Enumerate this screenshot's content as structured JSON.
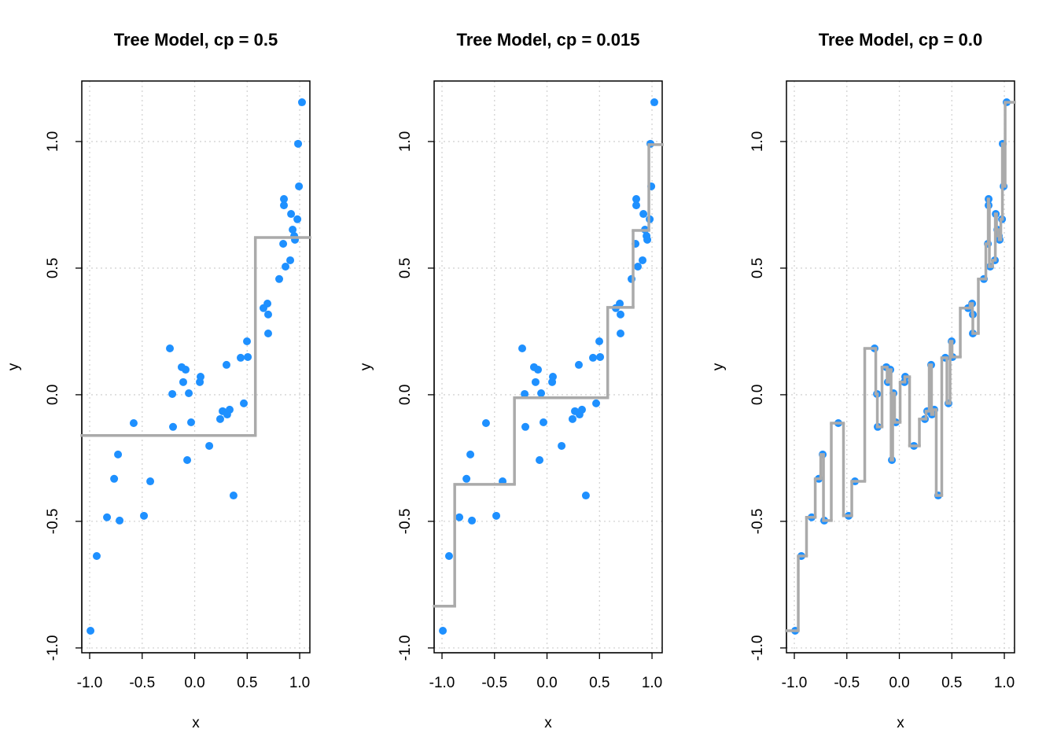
{
  "chart_data": [
    {
      "type": "scatter",
      "title": "Tree Model, cp = 0.5",
      "x_label": "x",
      "y_label": "y",
      "color": "#1e90ff",
      "grid": true,
      "x": [
        -0.992,
        -0.933,
        -0.835,
        -0.767,
        -0.73,
        -0.715,
        -0.581,
        -0.483,
        -0.423,
        -0.236,
        -0.213,
        -0.206,
        -0.124,
        -0.109,
        -0.086,
        -0.071,
        -0.056,
        -0.034,
        0.049,
        0.056,
        0.139,
        0.243,
        0.266,
        0.303,
        0.31,
        0.333,
        0.37,
        0.438,
        0.468,
        0.498,
        0.506,
        0.655,
        0.693,
        0.7,
        0.7,
        0.805,
        0.843,
        0.85,
        0.85,
        0.865,
        0.91,
        0.918,
        0.933,
        0.948,
        0.955,
        0.978,
        0.985,
        0.993,
        1.022
      ],
      "values": [
        -0.932,
        -0.637,
        -0.484,
        -0.332,
        -0.236,
        -0.497,
        -0.112,
        -0.478,
        -0.342,
        0.183,
        0.003,
        -0.127,
        0.109,
        0.05,
        0.099,
        -0.258,
        0.006,
        -0.109,
        0.05,
        0.071,
        -0.202,
        -0.096,
        -0.065,
        0.118,
        -0.078,
        -0.059,
        -0.398,
        0.146,
        -0.034,
        0.211,
        0.149,
        0.342,
        0.36,
        0.317,
        0.242,
        0.457,
        0.596,
        0.773,
        0.748,
        0.506,
        0.531,
        0.714,
        0.652,
        0.627,
        0.612,
        0.693,
        0.991,
        0.823,
        1.155
      ],
      "xlim": [
        -1.075,
        1.097
      ],
      "ylim": [
        -1.019,
        1.239
      ],
      "xticks": [
        {
          "value": -1,
          "label": "-1.0"
        },
        -0.5,
        {
          "value": 0,
          "label": "0.0"
        },
        0.5,
        {
          "value": 1,
          "label": "1.0"
        }
      ],
      "yticks": [
        {
          "value": -1,
          "label": "-1.0"
        },
        -0.5,
        {
          "value": 0,
          "label": "0.0"
        },
        0.5,
        {
          "value": 1,
          "label": "1.0"
        }
      ],
      "fit": {
        "color": "#aaaaaa",
        "x_start": [
          -1.075,
          0.578
        ],
        "values": [
          -0.161,
          0.621
        ]
      }
    },
    {
      "type": "scatter",
      "title": "Tree Model, cp = 0.015",
      "x_label": "x",
      "y_label": "y",
      "color": "#1e90ff",
      "grid": true,
      "x": [
        -0.992,
        -0.933,
        -0.835,
        -0.767,
        -0.73,
        -0.715,
        -0.581,
        -0.483,
        -0.423,
        -0.236,
        -0.213,
        -0.206,
        -0.124,
        -0.109,
        -0.086,
        -0.071,
        -0.056,
        -0.034,
        0.049,
        0.056,
        0.139,
        0.243,
        0.266,
        0.303,
        0.31,
        0.333,
        0.37,
        0.438,
        0.468,
        0.498,
        0.506,
        0.655,
        0.693,
        0.7,
        0.7,
        0.805,
        0.843,
        0.85,
        0.85,
        0.865,
        0.91,
        0.918,
        0.933,
        0.948,
        0.955,
        0.978,
        0.985,
        0.993,
        1.022
      ],
      "values": [
        -0.932,
        -0.637,
        -0.484,
        -0.332,
        -0.236,
        -0.497,
        -0.112,
        -0.478,
        -0.342,
        0.183,
        0.003,
        -0.127,
        0.109,
        0.05,
        0.099,
        -0.258,
        0.006,
        -0.109,
        0.05,
        0.071,
        -0.202,
        -0.096,
        -0.065,
        0.118,
        -0.078,
        -0.059,
        -0.398,
        0.146,
        -0.034,
        0.211,
        0.149,
        0.342,
        0.36,
        0.317,
        0.242,
        0.457,
        0.596,
        0.773,
        0.748,
        0.506,
        0.531,
        0.714,
        0.652,
        0.627,
        0.612,
        0.693,
        0.991,
        0.823,
        1.155
      ],
      "xlim": [
        -1.075,
        1.097
      ],
      "ylim": [
        -1.019,
        1.239
      ],
      "xticks": [
        {
          "value": -1,
          "label": "-1.0"
        },
        -0.5,
        {
          "value": 0,
          "label": "0.0"
        },
        0.5,
        {
          "value": 1,
          "label": "1.0"
        }
      ],
      "yticks": [
        {
          "value": -1,
          "label": "-1.0"
        },
        -0.5,
        {
          "value": 0,
          "label": "0.0"
        },
        0.5,
        {
          "value": 1,
          "label": "1.0"
        }
      ],
      "fit": {
        "color": "#aaaaaa",
        "x_start": [
          -1.075,
          -0.879,
          -0.31,
          0.578,
          0.82,
          0.97
        ],
        "values": [
          -0.835,
          -0.354,
          -0.012,
          0.345,
          0.649,
          0.988
        ]
      }
    },
    {
      "type": "scatter",
      "title": "Tree Model, cp = 0.0",
      "x_label": "x",
      "y_label": "y",
      "color": "#1e90ff",
      "grid": true,
      "x": [
        -0.992,
        -0.933,
        -0.835,
        -0.767,
        -0.73,
        -0.715,
        -0.581,
        -0.483,
        -0.423,
        -0.236,
        -0.213,
        -0.206,
        -0.124,
        -0.109,
        -0.086,
        -0.071,
        -0.056,
        -0.034,
        0.049,
        0.056,
        0.139,
        0.243,
        0.266,
        0.303,
        0.31,
        0.333,
        0.37,
        0.438,
        0.468,
        0.498,
        0.506,
        0.655,
        0.693,
        0.7,
        0.7,
        0.805,
        0.843,
        0.85,
        0.85,
        0.865,
        0.91,
        0.918,
        0.933,
        0.948,
        0.955,
        0.978,
        0.985,
        0.993,
        1.022
      ],
      "values": [
        -0.932,
        -0.637,
        -0.484,
        -0.332,
        -0.236,
        -0.497,
        -0.112,
        -0.478,
        -0.342,
        0.183,
        0.003,
        -0.127,
        0.109,
        0.05,
        0.099,
        -0.258,
        0.006,
        -0.109,
        0.05,
        0.071,
        -0.202,
        -0.096,
        -0.065,
        0.118,
        -0.078,
        -0.059,
        -0.398,
        0.146,
        -0.034,
        0.211,
        0.149,
        0.342,
        0.36,
        0.317,
        0.242,
        0.457,
        0.596,
        0.773,
        0.748,
        0.506,
        0.531,
        0.714,
        0.652,
        0.627,
        0.612,
        0.693,
        0.991,
        0.823,
        1.155
      ],
      "xlim": [
        -1.075,
        1.097
      ],
      "ylim": [
        -1.019,
        1.239
      ],
      "xticks": [
        {
          "value": -1,
          "label": "-1.0"
        },
        -0.5,
        {
          "value": 0,
          "label": "0.0"
        },
        0.5,
        {
          "value": 1,
          "label": "1.0"
        }
      ],
      "yticks": [
        {
          "value": -1,
          "label": "-1.0"
        },
        -0.5,
        {
          "value": 0,
          "label": "0.0"
        },
        0.5,
        {
          "value": 1,
          "label": "1.0"
        }
      ],
      "fit": {
        "color": "#aaaaaa",
        "steps_through_points": true
      }
    }
  ]
}
